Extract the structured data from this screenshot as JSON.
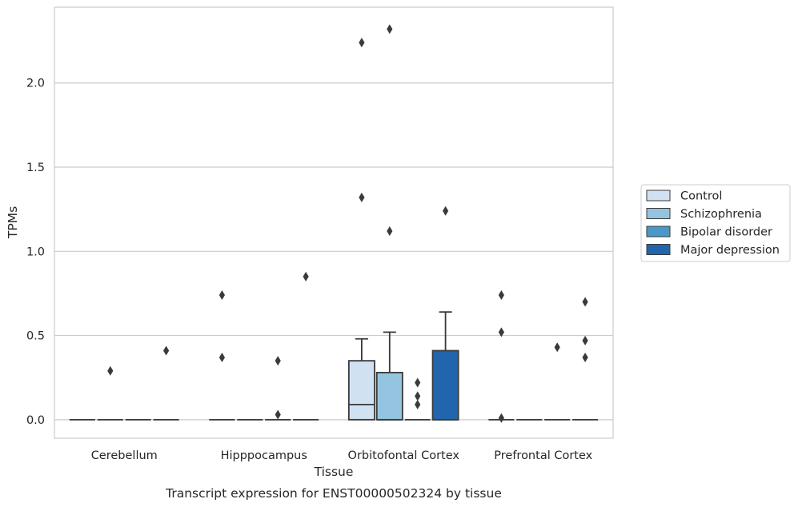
{
  "chart_data": {
    "type": "box",
    "title": "",
    "caption": "Transcript expression for ENST00000502324 by tissue",
    "xlabel": "Tissue",
    "ylabel": "TPMs",
    "ylim": [
      -0.11,
      2.45
    ],
    "yticks": [
      0.0,
      0.5,
      1.0,
      1.5,
      2.0
    ],
    "ytick_labels": [
      "0.0",
      "0.5",
      "1.0",
      "1.5",
      "2.0"
    ],
    "grid": "horizontal",
    "legend_placement": "right-outside",
    "categories": [
      "Cerebellum",
      "Hipppocampus",
      "Orbitofontal Cortex",
      "Prefrontal Cortex"
    ],
    "series": [
      {
        "name": "Control",
        "color": "#d0e1f2",
        "boxes": [
          {
            "q1": 0,
            "median": 0,
            "q3": 0,
            "whisker_low": 0,
            "whisker_high": 0,
            "outliers": []
          },
          {
            "q1": 0,
            "median": 0,
            "q3": 0,
            "whisker_low": 0,
            "whisker_high": 0,
            "outliers": [
              0.74,
              0.37
            ]
          },
          {
            "q1": 0,
            "median": 0.09,
            "q3": 0.35,
            "whisker_low": 0,
            "whisker_high": 0.48,
            "outliers": [
              2.24,
              1.32
            ]
          },
          {
            "q1": 0,
            "median": 0,
            "q3": 0,
            "whisker_low": 0,
            "whisker_high": 0,
            "outliers": [
              0.74,
              0.52,
              0.01
            ]
          }
        ]
      },
      {
        "name": "Schizophrenia",
        "color": "#94c4df",
        "boxes": [
          {
            "q1": 0,
            "median": 0,
            "q3": 0,
            "whisker_low": 0,
            "whisker_high": 0,
            "outliers": [
              0.29
            ]
          },
          {
            "q1": 0,
            "median": 0,
            "q3": 0,
            "whisker_low": 0,
            "whisker_high": 0,
            "outliers": []
          },
          {
            "q1": 0,
            "median": 0,
            "q3": 0.28,
            "whisker_low": 0,
            "whisker_high": 0.52,
            "outliers": [
              2.32,
              1.12
            ]
          },
          {
            "q1": 0,
            "median": 0,
            "q3": 0,
            "whisker_low": 0,
            "whisker_high": 0,
            "outliers": []
          }
        ]
      },
      {
        "name": "Bipolar disorder",
        "color": "#4a98c9",
        "boxes": [
          {
            "q1": 0,
            "median": 0,
            "q3": 0,
            "whisker_low": 0,
            "whisker_high": 0,
            "outliers": []
          },
          {
            "q1": 0,
            "median": 0,
            "q3": 0,
            "whisker_low": 0,
            "whisker_high": 0,
            "outliers": [
              0.35,
              0.03
            ]
          },
          {
            "q1": 0,
            "median": 0,
            "q3": 0,
            "whisker_low": 0,
            "whisker_high": 0,
            "outliers": [
              0.22,
              0.14,
              0.09
            ]
          },
          {
            "q1": 0,
            "median": 0,
            "q3": 0,
            "whisker_low": 0,
            "whisker_high": 0,
            "outliers": [
              0.43
            ]
          }
        ]
      },
      {
        "name": "Major depression",
        "color": "#2166ac",
        "boxes": [
          {
            "q1": 0,
            "median": 0,
            "q3": 0,
            "whisker_low": 0,
            "whisker_high": 0,
            "outliers": [
              0.41
            ]
          },
          {
            "q1": 0,
            "median": 0,
            "q3": 0,
            "whisker_low": 0,
            "whisker_high": 0,
            "outliers": [
              0.85
            ]
          },
          {
            "q1": 0,
            "median": 0,
            "q3": 0.41,
            "whisker_low": 0,
            "whisker_high": 0.64,
            "outliers": [
              1.24
            ]
          },
          {
            "q1": 0,
            "median": 0,
            "q3": 0,
            "whisker_low": 0,
            "whisker_high": 0,
            "outliers": [
              0.7,
              0.47,
              0.37
            ]
          }
        ]
      }
    ]
  },
  "legend": {
    "items": [
      "Control",
      "Schizophrenia",
      "Bipolar disorder",
      "Major depression"
    ]
  }
}
